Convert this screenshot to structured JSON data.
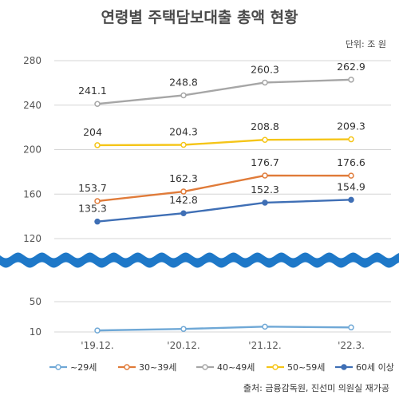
{
  "chart_data": {
    "type": "line",
    "title": "연령별 주택담보대출 총액 현황",
    "unit": "단위: 조 원",
    "source": "출처: 금융감독원, 진선미 의원실 재가공",
    "categories": [
      "'19.12.",
      "'20.12.",
      "'21.12.",
      "'22.3."
    ],
    "upper_axis": {
      "ylim": [
        120,
        280
      ],
      "ticks": [
        120,
        160,
        200,
        240,
        280
      ]
    },
    "lower_axis": {
      "ylim": [
        10,
        50
      ],
      "ticks": [
        10,
        50
      ]
    },
    "grid": true,
    "legend_position": "bottom",
    "series": [
      {
        "name": "~29세",
        "values": [
          12,
          14,
          17,
          16
        ],
        "labeled": false,
        "axis": "lower",
        "color": "#6fa8d6"
      },
      {
        "name": "30~39세",
        "values": [
          153.7,
          162.3,
          176.7,
          176.6
        ],
        "labeled": true,
        "axis": "upper",
        "color": "#e07b39"
      },
      {
        "name": "40~49세",
        "values": [
          241.1,
          248.8,
          260.3,
          262.9
        ],
        "labeled": true,
        "axis": "upper",
        "color": "#a6a6a6"
      },
      {
        "name": "50~59세",
        "values": [
          204,
          204.3,
          208.8,
          209.3
        ],
        "labeled": true,
        "axis": "upper",
        "color": "#f5c518"
      },
      {
        "name": "60세 이상",
        "values": [
          135.3,
          142.8,
          152.3,
          154.9
        ],
        "labeled": true,
        "axis": "upper",
        "color": "#3f6fb5"
      }
    ]
  },
  "colors": {
    "wave": "#1e78c8",
    "grid": "#d6d6d6"
  }
}
